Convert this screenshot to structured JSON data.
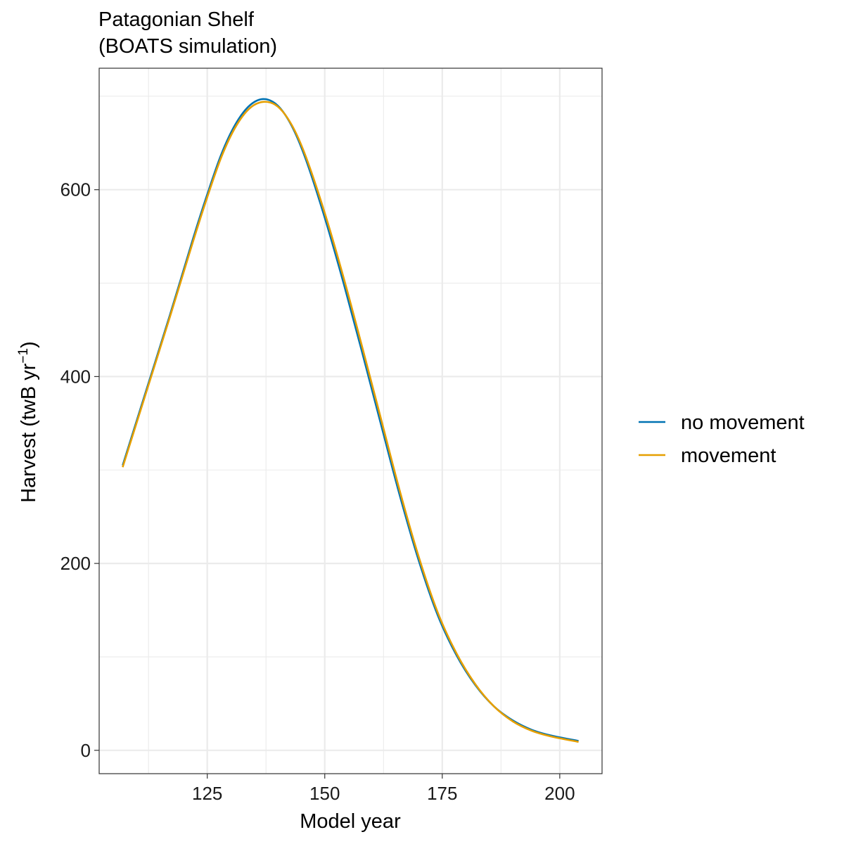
{
  "chart_data": {
    "type": "line",
    "title": "Patagonian Shelf",
    "subtitle": "(BOATS simulation)",
    "xlabel": "Model year",
    "ylabel": "Harvest (twB yr",
    "ylabel_superscript": "−1",
    "ylabel_suffix": ")",
    "xlim": [
      102,
      209
    ],
    "ylim": [
      -25,
      730
    ],
    "x_ticks": [
      125,
      150,
      175,
      200
    ],
    "x_ticks_minor": [
      112.5,
      137.5,
      162.5,
      187.5
    ],
    "y_ticks": [
      0,
      200,
      400,
      600
    ],
    "y_ticks_minor": [
      100,
      300,
      500,
      700
    ],
    "grid": true,
    "legend_position": "right",
    "series": [
      {
        "name": "no movement",
        "color": "#0072B2",
        "x": [
          107,
          112,
          117,
          122,
          125,
          128,
          131,
          134,
          137,
          140,
          143,
          146,
          150,
          154,
          158,
          162,
          166,
          170,
          174,
          178,
          182,
          186,
          190,
          194,
          198,
          204
        ],
        "y": [
          305,
          385,
          465,
          548,
          595,
          638,
          670,
          690,
          697,
          690,
          668,
          632,
          570,
          500,
          425,
          348,
          272,
          203,
          145,
          102,
          70,
          47,
          32,
          22,
          16,
          10
        ]
      },
      {
        "name": "movement",
        "color": "#E69F00",
        "x": [
          107,
          112,
          117,
          122,
          125,
          128,
          131,
          134,
          137,
          140,
          143,
          146,
          150,
          154,
          158,
          162,
          166,
          170,
          174,
          178,
          182,
          186,
          190,
          194,
          198,
          204
        ],
        "y": [
          303,
          383,
          463,
          545,
          592,
          635,
          667,
          687,
          694,
          689,
          669,
          635,
          575,
          506,
          431,
          354,
          277,
          207,
          148,
          104,
          71,
          47,
          31,
          21,
          15,
          9
        ]
      }
    ]
  }
}
